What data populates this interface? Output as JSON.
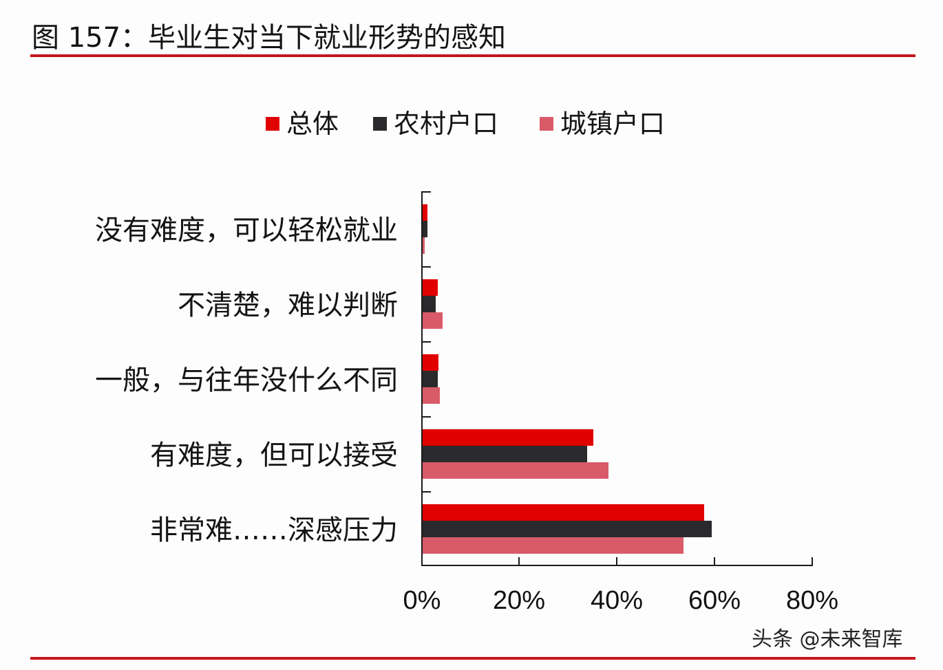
{
  "header": {
    "title": "图 157：毕业生对当下就业形势的感知"
  },
  "watermark": "头条 @未来智库",
  "colors": {
    "rule": "#c4161c",
    "series_total": "#e10000",
    "series_rural": "#2a2a2c",
    "series_urban": "#d95b69"
  },
  "chart_data": {
    "type": "bar",
    "orientation": "horizontal",
    "title": "图 157：毕业生对当下就业形势的感知",
    "xlabel": "",
    "ylabel": "",
    "xlim": [
      0,
      80
    ],
    "x_ticks": [
      "0%",
      "20%",
      "40%",
      "60%",
      "80%"
    ],
    "grid": false,
    "legend_position": "top",
    "categories": [
      "没有难度，可以轻松就业",
      "不清楚，难以判断",
      "一般，与往年没什么不同",
      "有难度，但可以接受",
      "非常难……深感压力"
    ],
    "series": [
      {
        "name": "总体",
        "color": "#e10000",
        "values": [
          1.0,
          3.1,
          3.2,
          35.0,
          57.7
        ]
      },
      {
        "name": "农村户口",
        "color": "#2a2a2c",
        "values": [
          1.0,
          2.7,
          3.1,
          33.7,
          59.2
        ]
      },
      {
        "name": "城镇户口",
        "color": "#d95b69",
        "values": [
          0.4,
          4.1,
          3.5,
          38.1,
          53.5
        ]
      }
    ],
    "unit": "%"
  }
}
